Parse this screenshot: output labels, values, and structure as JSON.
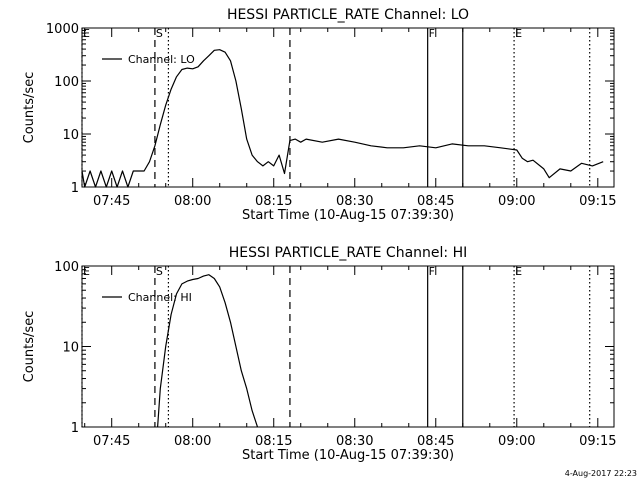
{
  "footer": {
    "timestamp": "4-Aug-2017 22:23"
  },
  "chart_data": [
    {
      "type": "line",
      "title": "HESSI PARTICLE_RATE Channel: LO",
      "xlabel": "Start Time (10-Aug-15 07:39:30)",
      "ylabel": "Counts/sec",
      "yscale": "log",
      "xlim": [
        "07:39:30",
        "09:18:00"
      ],
      "ylim": [
        1,
        1000
      ],
      "grid": false,
      "legend_position": "top-left",
      "x_ticks": [
        "07:45",
        "08:00",
        "08:15",
        "08:30",
        "08:45",
        "09:00",
        "09:15"
      ],
      "y_ticks": [
        "1",
        "10",
        "100",
        "1000"
      ],
      "series": [
        {
          "name": "Channel: LO",
          "x": [
            "07:39:30",
            "07:40:00",
            "07:41:00",
            "07:42:00",
            "07:43:00",
            "07:44:00",
            "07:45:00",
            "07:46:00",
            "07:47:00",
            "07:48:00",
            "07:49:00",
            "07:50:00",
            "07:51:00",
            "07:52:00",
            "07:53:00",
            "07:54:00",
            "07:55:00",
            "07:56:00",
            "07:57:00",
            "07:58:00",
            "07:59:00",
            "08:00:00",
            "08:01:00",
            "08:02:00",
            "08:03:00",
            "08:04:00",
            "08:05:00",
            "08:06:00",
            "08:07:00",
            "08:08:00",
            "08:09:00",
            "08:10:00",
            "08:11:00",
            "08:12:00",
            "08:13:00",
            "08:14:00",
            "08:15:00",
            "08:16:00",
            "08:17:00",
            "08:18:00",
            "08:19:00",
            "08:20:00",
            "08:21:00",
            "08:24:00",
            "08:27:00",
            "08:30:00",
            "08:33:00",
            "08:36:00",
            "08:39:00",
            "08:42:00",
            "08:45:00",
            "08:48:00",
            "08:51:00",
            "08:54:00",
            "08:57:00",
            "09:00:00",
            "09:01:00",
            "09:02:00",
            "09:03:00",
            "09:05:00",
            "09:06:00",
            "09:08:00",
            "09:10:00",
            "09:12:00",
            "09:14:00",
            "09:16:00"
          ],
          "y": [
            2,
            1,
            2,
            1,
            2,
            1,
            2,
            1,
            2,
            1,
            2,
            2,
            2,
            3,
            6,
            15,
            35,
            70,
            120,
            165,
            175,
            170,
            185,
            240,
            300,
            380,
            390,
            350,
            240,
            100,
            30,
            8,
            4,
            3,
            2.5,
            3,
            2.5,
            4,
            1.8,
            7.5,
            8,
            7,
            8,
            7,
            8,
            7,
            6,
            5.5,
            5.5,
            6,
            5.5,
            6.5,
            6,
            6,
            5.5,
            5,
            3.5,
            3,
            3.2,
            2.2,
            1.5,
            2.2,
            2,
            2.8,
            2.5,
            3
          ]
        }
      ],
      "markers": [
        {
          "label": "E",
          "time": "07:39:30",
          "style": "dotted"
        },
        {
          "label": "S",
          "time": "07:53:00",
          "style": "dashed"
        },
        {
          "label": "",
          "time": "07:55:30",
          "style": "dotted"
        },
        {
          "label": "",
          "time": "08:18:00",
          "style": "dashed"
        },
        {
          "label": "F",
          "time": "08:43:30",
          "style": "solid"
        },
        {
          "label": "",
          "time": "08:50:00",
          "style": "solid"
        },
        {
          "label": "E",
          "time": "08:59:30",
          "style": "dotted"
        },
        {
          "label": "",
          "time": "09:13:30",
          "style": "dotted"
        }
      ]
    },
    {
      "type": "line",
      "title": "HESSI PARTICLE_RATE Channel: HI",
      "xlabel": "Start Time (10-Aug-15 07:39:30)",
      "ylabel": "Counts/sec",
      "yscale": "log",
      "xlim": [
        "07:39:30",
        "09:18:00"
      ],
      "ylim": [
        1,
        100
      ],
      "grid": false,
      "legend_position": "top-left",
      "x_ticks": [
        "07:45",
        "08:00",
        "08:15",
        "08:30",
        "08:45",
        "09:00",
        "09:15"
      ],
      "y_ticks": [
        "1",
        "10",
        "100"
      ],
      "series": [
        {
          "name": "Channel: HI",
          "x": [
            "07:53:30",
            "07:54:00",
            "07:55:00",
            "07:56:00",
            "07:57:00",
            "07:58:00",
            "07:59:00",
            "08:00:00",
            "08:01:00",
            "08:02:00",
            "08:03:00",
            "08:04:00",
            "08:05:00",
            "08:06:00",
            "08:07:00",
            "08:08:00",
            "08:09:00",
            "08:10:00",
            "08:11:00",
            "08:12:00"
          ],
          "y": [
            1,
            3,
            10,
            25,
            45,
            60,
            65,
            68,
            70,
            75,
            78,
            70,
            55,
            35,
            20,
            10,
            5,
            3,
            1.6,
            1
          ]
        }
      ],
      "markers": [
        {
          "label": "E",
          "time": "07:39:30",
          "style": "dotted"
        },
        {
          "label": "S",
          "time": "07:53:00",
          "style": "dashed"
        },
        {
          "label": "",
          "time": "07:55:30",
          "style": "dotted"
        },
        {
          "label": "",
          "time": "08:18:00",
          "style": "dashed"
        },
        {
          "label": "F",
          "time": "08:43:30",
          "style": "solid"
        },
        {
          "label": "",
          "time": "08:50:00",
          "style": "solid"
        },
        {
          "label": "E",
          "time": "08:59:30",
          "style": "dotted"
        },
        {
          "label": "",
          "time": "09:13:30",
          "style": "dotted"
        }
      ]
    }
  ]
}
